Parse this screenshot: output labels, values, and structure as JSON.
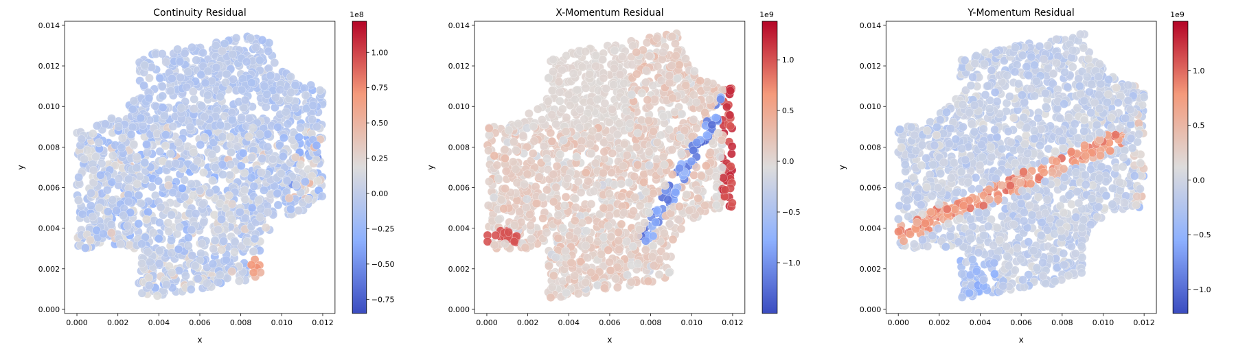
{
  "chart_data": [
    {
      "type": "scatter",
      "title": "Continuity Residual",
      "xlabel": "x",
      "ylabel": "y",
      "xlim": [
        -0.0006,
        0.0126
      ],
      "ylim": [
        -0.0002,
        0.0142
      ],
      "xticks": [
        "0.000",
        "0.002",
        "0.004",
        "0.006",
        "0.008",
        "0.010",
        "0.012"
      ],
      "yticks": [
        "0.000",
        "0.002",
        "0.004",
        "0.006",
        "0.008",
        "0.010",
        "0.012",
        "0.014"
      ],
      "colormap": "coolwarm",
      "colorbar": {
        "min": -0.85,
        "max": 1.22,
        "exponent_label": "1e8",
        "ticks": [
          "−0.75",
          "−0.50",
          "−0.25",
          "0.00",
          "0.25",
          "0.50",
          "0.75",
          "1.00"
        ],
        "tick_values": [
          -0.75,
          -0.5,
          -0.25,
          0.0,
          0.25,
          0.5,
          0.75,
          1.0
        ]
      },
      "domain": {
        "x_range": [
          0.0,
          0.012
        ],
        "left_edge_y": [
          0.003,
          0.009
        ],
        "right_edge_y": [
          0.005,
          0.011
        ],
        "bottom_edge_x": [
          0.003,
          0.009
        ],
        "top_edge_x": [
          0.003,
          0.009
        ],
        "corner_notch": "concave quarter-circle cut at each corner"
      },
      "field_pattern": "mostly light blue (about −0.2e8 to 0.2e8) with scattered darker blue and salmon points; strongest positive near x≈0.009, y≈0.0015 and along the right edge"
    },
    {
      "type": "scatter",
      "title": "X-Momentum Residual",
      "xlabel": "x",
      "ylabel": "y",
      "xlim": [
        -0.0006,
        0.0126
      ],
      "ylim": [
        -0.0002,
        0.0142
      ],
      "xticks": [
        "0.000",
        "0.002",
        "0.004",
        "0.006",
        "0.008",
        "0.010",
        "0.012"
      ],
      "yticks": [
        "0.000",
        "0.002",
        "0.004",
        "0.006",
        "0.008",
        "0.010",
        "0.012",
        "0.014"
      ],
      "colormap": "coolwarm",
      "colorbar": {
        "min": -1.5,
        "max": 1.38,
        "exponent_label": "1e9",
        "ticks": [
          "−1.0",
          "−0.5",
          "0.0",
          "0.5",
          "1.0"
        ],
        "tick_values": [
          -1.0,
          -0.5,
          0.0,
          0.5,
          1.0
        ]
      },
      "field_pattern": "near-zero grey upper-left, light salmon lower-left; blue band along diagonal from (0.008,0.004) to (0.012,0.011); strong red along right edge x≈0.012 and lower-left edge near y≈0.0036"
    },
    {
      "type": "scatter",
      "title": "Y-Momentum Residual",
      "xlabel": "x",
      "ylabel": "y",
      "xlim": [
        -0.0006,
        0.0126
      ],
      "ylim": [
        -0.0002,
        0.0142
      ],
      "xticks": [
        "0.000",
        "0.002",
        "0.004",
        "0.006",
        "0.008",
        "0.010",
        "0.012"
      ],
      "yticks": [
        "0.000",
        "0.002",
        "0.004",
        "0.006",
        "0.008",
        "0.010",
        "0.012",
        "0.014"
      ],
      "colormap": "coolwarm",
      "colorbar": {
        "min": -1.22,
        "max": 1.45,
        "exponent_label": "1e9",
        "ticks": [
          "−1.0",
          "−0.5",
          "0.0",
          "0.5",
          "1.0"
        ],
        "tick_values": [
          -1.0,
          -0.5,
          0.0,
          0.5,
          1.0
        ]
      },
      "field_pattern": "mostly pale blue-grey; red band from (0.0,0.0037) curving to (0.011,0.0085); blue points along lower-left arc and right edge"
    }
  ]
}
